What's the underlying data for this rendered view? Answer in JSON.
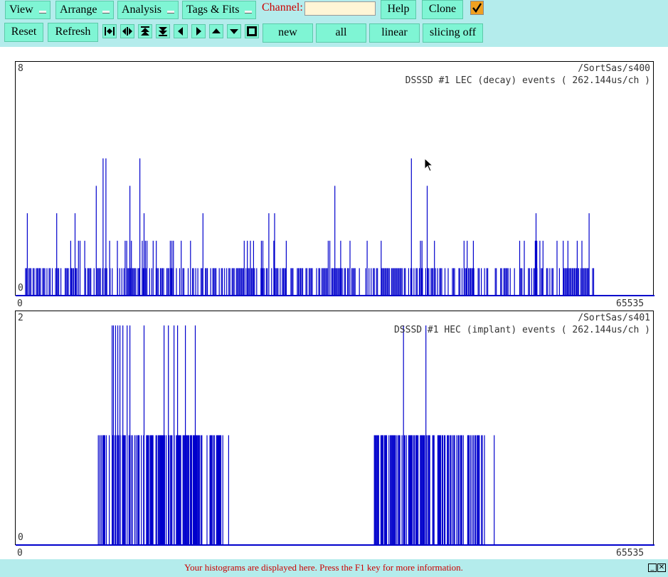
{
  "toolbar": {
    "menus": [
      "View",
      "Arrange",
      "Analysis",
      "Tags & Fits"
    ],
    "channel_label": "Channel:",
    "channel_value": "",
    "help_label": "Help",
    "clone_label": "Clone",
    "auto_checked": true,
    "reset_label": "Reset",
    "refresh_label": "Refresh",
    "icons": [
      "expand-horizontal-icon",
      "contract-horizontal-icon",
      "expand-vertical-icon",
      "contract-vertical-icon",
      "scroll-left-icon",
      "scroll-right-icon",
      "scroll-up-icon",
      "scroll-down-icon",
      "full-view-icon"
    ],
    "new_label": "new",
    "all_label": "all",
    "scale_label": "linear",
    "slicing_label": "slicing off"
  },
  "histograms": [
    {
      "path": "/SortSas/s400",
      "title": "DSSSD #1 LEC (decay) events ( 262.144us/ch )",
      "y_max": "8",
      "y_min": "0",
      "x_min": "0",
      "x_max": "65535",
      "chart_data": {
        "type": "bar",
        "xlim": [
          0,
          65535
        ],
        "ylim": [
          0,
          8
        ],
        "color": "#0000cc",
        "tall_bars": [
          {
            "x": 8990,
            "y": 5
          },
          {
            "x": 9280,
            "y": 5
          },
          {
            "x": 12770,
            "y": 5
          },
          {
            "x": 40690,
            "y": 5
          },
          {
            "x": 8290,
            "y": 4
          },
          {
            "x": 11750,
            "y": 4
          },
          {
            "x": 32820,
            "y": 4
          },
          {
            "x": 42310,
            "y": 4
          },
          {
            "x": 1200,
            "y": 3
          },
          {
            "x": 4220,
            "y": 3
          },
          {
            "x": 6110,
            "y": 3
          },
          {
            "x": 13200,
            "y": 3
          },
          {
            "x": 19260,
            "y": 3
          },
          {
            "x": 26030,
            "y": 3
          },
          {
            "x": 26620,
            "y": 3
          },
          {
            "x": 53500,
            "y": 3
          },
          {
            "x": 58960,
            "y": 3
          }
        ],
        "mid_region": [
          [
            5500,
            18000
          ],
          [
            23500,
            28500
          ],
          [
            31500,
            34500
          ],
          [
            35500,
            38000
          ],
          [
            40500,
            48000
          ],
          [
            51500,
            59000
          ]
        ],
        "low_regions": [
          [
            800,
            59500
          ]
        ]
      }
    },
    {
      "path": "/SortSas/s401",
      "title": "DSSSD #1 HEC (implant) events ( 262.144us/ch )",
      "y_max": "2",
      "y_min": "0",
      "x_min": "0",
      "x_max": "65535",
      "chart_data": {
        "type": "bar",
        "xlim": [
          0,
          65535
        ],
        "ylim": [
          0,
          2
        ],
        "color": "#0000cc",
        "tall_bars": [
          {
            "x": 9920,
            "y": 2
          },
          {
            "x": 10060,
            "y": 2
          },
          {
            "x": 10280,
            "y": 2
          },
          {
            "x": 10500,
            "y": 2
          },
          {
            "x": 10720,
            "y": 2
          },
          {
            "x": 11020,
            "y": 2
          },
          {
            "x": 11460,
            "y": 2
          },
          {
            "x": 11750,
            "y": 2
          },
          {
            "x": 13200,
            "y": 2
          },
          {
            "x": 15260,
            "y": 2
          },
          {
            "x": 15700,
            "y": 2
          },
          {
            "x": 16280,
            "y": 2
          },
          {
            "x": 16650,
            "y": 2
          },
          {
            "x": 17450,
            "y": 2
          },
          {
            "x": 18470,
            "y": 2
          },
          {
            "x": 39880,
            "y": 2
          },
          {
            "x": 42180,
            "y": 2
          }
        ],
        "regions": [
          [
            8200,
            21200
          ],
          [
            36800,
            48000
          ]
        ],
        "isolated": [
          21300,
          21900,
          48200,
          49200
        ]
      }
    }
  ],
  "status": {
    "message": "Your histograms are displayed here. Press the F1 key for more information."
  }
}
